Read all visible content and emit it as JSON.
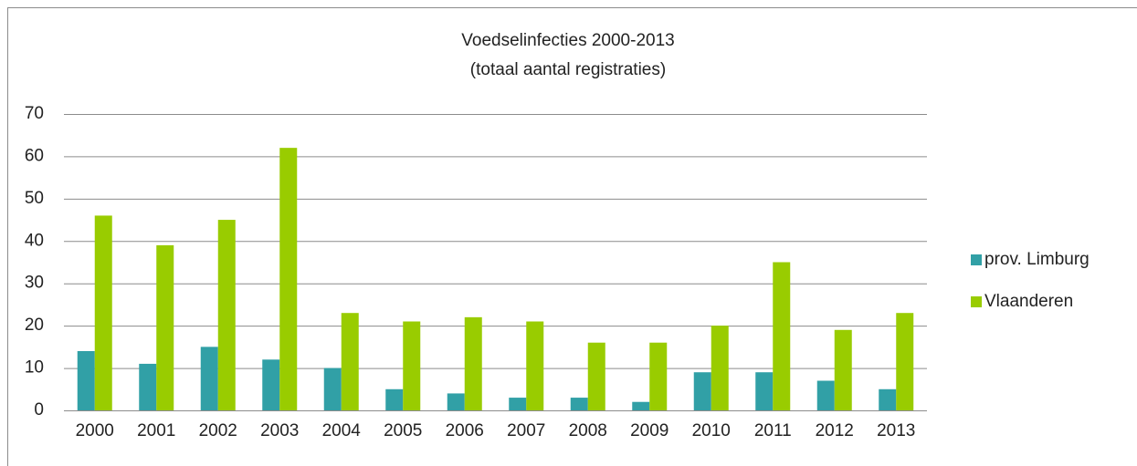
{
  "chart_data": {
    "type": "bar",
    "title": "Voedselinfecties 2000-2013",
    "subtitle": "(totaal aantal registraties)",
    "categories": [
      "2000",
      "2001",
      "2002",
      "2003",
      "2004",
      "2005",
      "2006",
      "2007",
      "2008",
      "2009",
      "2010",
      "2011",
      "2012",
      "2013"
    ],
    "series": [
      {
        "name": "prov. Limburg",
        "color": "#31a0a6",
        "values": [
          14,
          11,
          15,
          12,
          10,
          5,
          4,
          3,
          3,
          2,
          9,
          9,
          7,
          5
        ]
      },
      {
        "name": "Vlaanderen",
        "color": "#99cc00",
        "values": [
          46,
          39,
          45,
          62,
          23,
          21,
          22,
          21,
          16,
          16,
          20,
          35,
          19,
          23
        ]
      }
    ],
    "ylim": [
      0,
      70
    ],
    "yticks": [
      0,
      10,
      20,
      30,
      40,
      50,
      60,
      70
    ],
    "grid": true,
    "legend": "right"
  }
}
